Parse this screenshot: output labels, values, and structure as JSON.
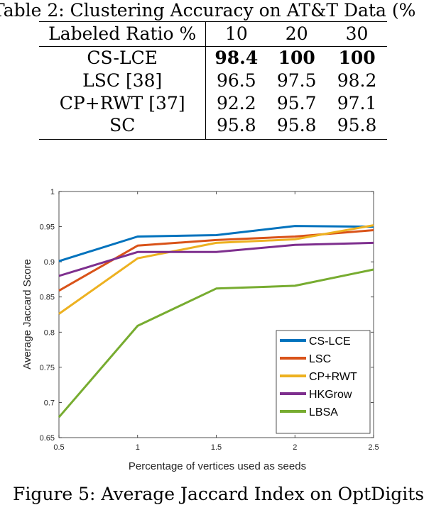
{
  "table": {
    "caption": "Table 2: Clustering Accuracy on AT&T Data (%",
    "header": [
      "Labeled Ratio %",
      "10",
      "20",
      "30"
    ],
    "rows": [
      {
        "method": "CS-LCE",
        "values": [
          "98.4",
          "100",
          "100"
        ],
        "bold": true
      },
      {
        "method": "LSC [38]",
        "values": [
          "96.5",
          "97.5",
          "98.2"
        ],
        "bold": false
      },
      {
        "method": "CP+RWT [37]",
        "values": [
          "92.2",
          "95.7",
          "97.1"
        ],
        "bold": false
      },
      {
        "method": "SC",
        "values": [
          "95.8",
          "95.8",
          "95.8"
        ],
        "bold": false
      }
    ]
  },
  "chart_data": {
    "type": "line",
    "title": "",
    "xlabel": "Percentage of vertices used as seeds",
    "ylabel": "Average Jaccard Score",
    "xlim": [
      0.5,
      2.5
    ],
    "ylim": [
      0.65,
      1.0
    ],
    "xticks": [
      "0.5",
      "1",
      "1.5",
      "2",
      "2.5"
    ],
    "yticks": [
      "0.65",
      "0.7",
      "0.75",
      "0.8",
      "0.85",
      "0.9",
      "0.95",
      "1"
    ],
    "legend_position": "bottom-right",
    "grid": false,
    "series": [
      {
        "name": "CS-LCE",
        "color": "#0072BD",
        "x": [
          0.5,
          1,
          1.5,
          2,
          2.5
        ],
        "y": [
          0.901,
          0.936,
          0.938,
          0.951,
          0.95
        ]
      },
      {
        "name": "LSC",
        "color": "#D95319",
        "x": [
          0.5,
          1,
          1.5,
          2,
          2.5
        ],
        "y": [
          0.859,
          0.923,
          0.931,
          0.936,
          0.945
        ]
      },
      {
        "name": "CP+RWT",
        "color": "#EDB120",
        "x": [
          0.5,
          1,
          1.5,
          2,
          2.5
        ],
        "y": [
          0.826,
          0.905,
          0.927,
          0.932,
          0.952
        ]
      },
      {
        "name": "HKGrow",
        "color": "#7E2F8E",
        "x": [
          0.5,
          1,
          1.5,
          2,
          2.5
        ],
        "y": [
          0.88,
          0.914,
          0.914,
          0.924,
          0.927
        ]
      },
      {
        "name": "LBSA",
        "color": "#77AC30",
        "x": [
          0.5,
          1,
          1.5,
          2,
          2.5
        ],
        "y": [
          0.679,
          0.809,
          0.862,
          0.866,
          0.889
        ]
      }
    ]
  },
  "figure": {
    "caption": "Figure 5: Average Jaccard Index on OptDigits"
  }
}
